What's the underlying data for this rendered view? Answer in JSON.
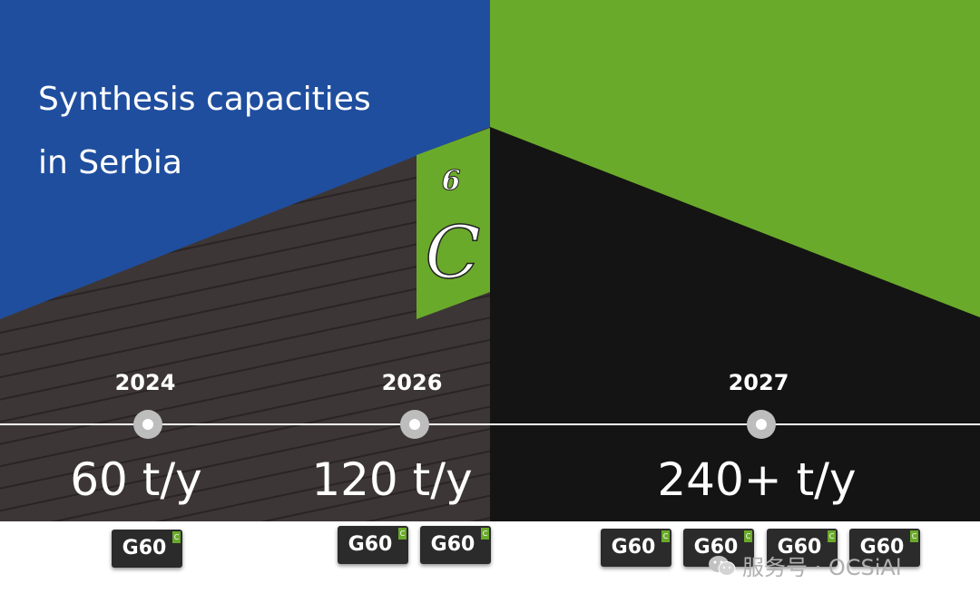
{
  "title": {
    "line1": "Synthesis capacities",
    "line2": "in Serbia"
  },
  "element": {
    "number": "6",
    "symbol": "C"
  },
  "timeline": [
    {
      "year": "2024",
      "capacity": "60 t/y",
      "chips": 1
    },
    {
      "year": "2026",
      "capacity": "120 t/y",
      "chips": 2
    },
    {
      "year": "2027",
      "capacity": "240+ t/y",
      "chips": 4
    }
  ],
  "chip": {
    "label": "G60",
    "corner": "C"
  },
  "watermark": {
    "text": "服务号 · OCSiAl",
    "icon": "wechat-icon"
  },
  "colors": {
    "blue": "#1f4e9e",
    "green": "#6aaa2a",
    "dark": "#141414",
    "wall": "#3d3636"
  }
}
